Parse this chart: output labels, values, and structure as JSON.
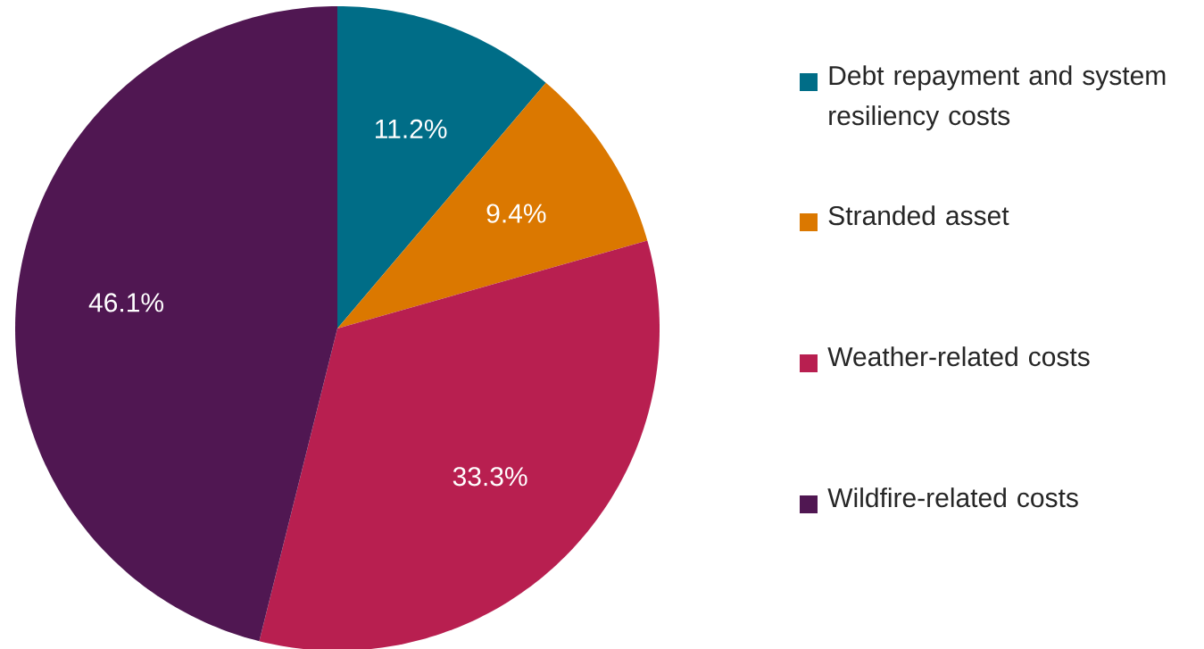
{
  "chart_data": {
    "type": "pie",
    "categories": [
      "Debt repayment and system resiliency costs",
      "Stranded asset",
      "Weather-related costs",
      "Wildfire-related costs"
    ],
    "values": [
      11.2,
      9.4,
      33.3,
      46.1
    ],
    "value_labels": [
      "11.2%",
      "9.4%",
      "33.3%",
      "46.1%"
    ],
    "colors": [
      "#006d87",
      "#db7800",
      "#b81f50",
      "#501752"
    ],
    "legend": "right"
  }
}
